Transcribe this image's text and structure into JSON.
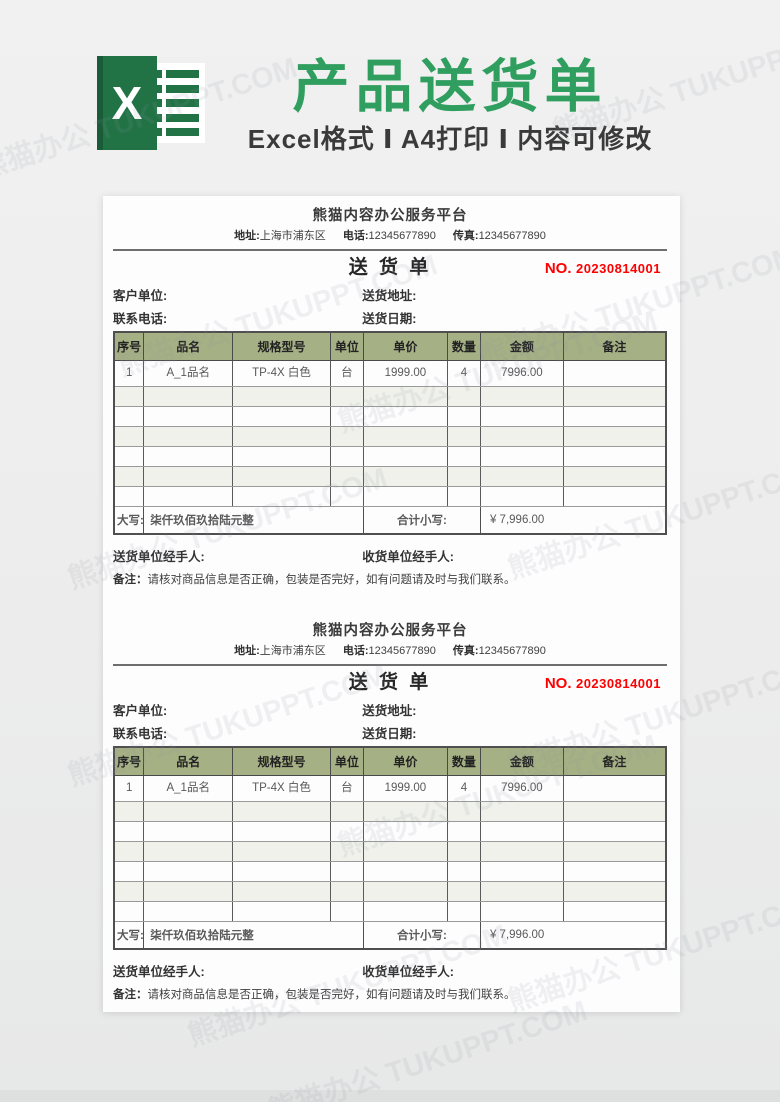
{
  "banner": {
    "logo_letter": "X",
    "logo_color": "#217346",
    "title": "产品送货单",
    "title_color": "#2f9e5f",
    "subtitle": "Excel格式 Ⅰ A4打印 Ⅰ 内容可修改"
  },
  "watermark_text": "熊猫办公 TUKUPPT.COM",
  "page": {
    "form_count": 2
  },
  "form": {
    "company": "熊猫内容办公服务平台",
    "address": [
      {
        "label": "地址:",
        "value": "上海市浦东区"
      },
      {
        "label": "电话:",
        "value": "12345677890"
      },
      {
        "label": "传真:",
        "value": "12345677890"
      }
    ],
    "doc_title": "送 货 单",
    "no_label": "NO.",
    "no_value": "20230814001",
    "no_color": "#fe0000",
    "fields": {
      "customer_label": "客户单位:",
      "address_label": "送货地址:",
      "phone_label": "联系电话:",
      "date_label": "送货日期:"
    },
    "table": {
      "header_bg": "#a5b085",
      "col_widths_pct": [
        5.4,
        16.1,
        17.7,
        6,
        15.2,
        6,
        15,
        18.6
      ],
      "headers": [
        "序号",
        "品名",
        "规格型号",
        "单位",
        "单价",
        "数量",
        "金额",
        "备注"
      ],
      "rows": [
        [
          "1",
          "A_1品名",
          "TP-4X 白色",
          "台",
          "1999.00",
          "4",
          "7996.00",
          ""
        ]
      ],
      "empty_row_count": 6,
      "amount_words_label": "大写:",
      "amount_words": "柒仟玖佰玖拾陆元整",
      "total_label": "合计小写:",
      "total_value": "¥ 7,996.00"
    },
    "sender_label": "送货单位经手人:",
    "receiver_label": "收货单位经手人:",
    "note_label": "备注：",
    "note_text": "请核对商品信息是否正确，包装是否完好，如有问题请及时与我们联系。"
  }
}
